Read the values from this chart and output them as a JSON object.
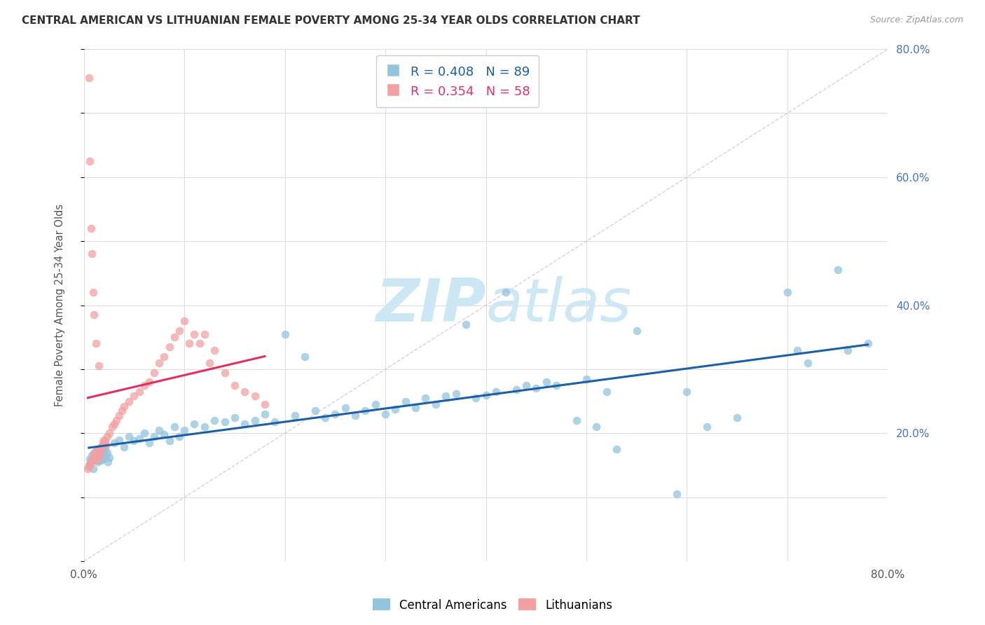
{
  "title": "CENTRAL AMERICAN VS LITHUANIAN FEMALE POVERTY AMONG 25-34 YEAR OLDS CORRELATION CHART",
  "source": "Source: ZipAtlas.com",
  "ylabel": "Female Poverty Among 25-34 Year Olds",
  "xlim": [
    0.0,
    0.8
  ],
  "ylim": [
    0.0,
    0.8
  ],
  "blue_R": 0.408,
  "blue_N": 89,
  "pink_R": 0.354,
  "pink_N": 58,
  "blue_color": "#92c5de",
  "pink_color": "#f4a0a0",
  "blue_line_color": "#1a5fa8",
  "pink_line_color": "#e03060",
  "legend_blue_color": "#1a5fa8",
  "legend_pink_color": "#e03060",
  "watermark_color": "#cde8f5",
  "background_color": "#ffffff",
  "grid_color": "#dddddd",
  "right_ytick_labels": [
    "20.0%",
    "40.0%",
    "60.0%",
    "80.0%"
  ],
  "right_ytick_positions": [
    0.2,
    0.4,
    0.6,
    0.8
  ],
  "xtick_labels": [
    "0.0%",
    "",
    "",
    "",
    "",
    "",
    "",
    "",
    "80.0%"
  ],
  "xtick_positions": [
    0.0,
    0.1,
    0.2,
    0.3,
    0.4,
    0.5,
    0.6,
    0.7,
    0.8
  ],
  "blue_scatter_x": [
    0.005,
    0.006,
    0.007,
    0.008,
    0.009,
    0.01,
    0.011,
    0.012,
    0.013,
    0.014,
    0.015,
    0.016,
    0.017,
    0.018,
    0.019,
    0.02,
    0.021,
    0.022,
    0.023,
    0.024,
    0.025,
    0.03,
    0.035,
    0.04,
    0.045,
    0.05,
    0.055,
    0.06,
    0.065,
    0.07,
    0.075,
    0.08,
    0.085,
    0.09,
    0.095,
    0.1,
    0.11,
    0.12,
    0.13,
    0.14,
    0.15,
    0.16,
    0.17,
    0.18,
    0.19,
    0.2,
    0.21,
    0.22,
    0.23,
    0.24,
    0.25,
    0.26,
    0.27,
    0.28,
    0.29,
    0.3,
    0.31,
    0.32,
    0.33,
    0.34,
    0.35,
    0.36,
    0.37,
    0.38,
    0.39,
    0.4,
    0.41,
    0.42,
    0.43,
    0.44,
    0.45,
    0.46,
    0.47,
    0.49,
    0.5,
    0.51,
    0.52,
    0.53,
    0.55,
    0.59,
    0.6,
    0.62,
    0.65,
    0.7,
    0.71,
    0.72,
    0.75,
    0.76,
    0.78
  ],
  "blue_scatter_y": [
    0.15,
    0.16,
    0.155,
    0.165,
    0.145,
    0.17,
    0.158,
    0.162,
    0.168,
    0.155,
    0.172,
    0.165,
    0.158,
    0.175,
    0.16,
    0.18,
    0.175,
    0.165,
    0.17,
    0.155,
    0.162,
    0.185,
    0.19,
    0.178,
    0.195,
    0.188,
    0.192,
    0.2,
    0.185,
    0.195,
    0.205,
    0.198,
    0.188,
    0.21,
    0.195,
    0.205,
    0.215,
    0.21,
    0.22,
    0.218,
    0.225,
    0.215,
    0.22,
    0.23,
    0.218,
    0.355,
    0.228,
    0.32,
    0.235,
    0.225,
    0.23,
    0.24,
    0.228,
    0.235,
    0.245,
    0.23,
    0.238,
    0.25,
    0.24,
    0.255,
    0.245,
    0.258,
    0.262,
    0.37,
    0.255,
    0.26,
    0.265,
    0.42,
    0.268,
    0.275,
    0.27,
    0.28,
    0.275,
    0.22,
    0.285,
    0.21,
    0.265,
    0.175,
    0.36,
    0.105,
    0.265,
    0.21,
    0.225,
    0.42,
    0.33,
    0.31,
    0.455,
    0.33,
    0.34
  ],
  "pink_scatter_x": [
    0.004,
    0.005,
    0.006,
    0.007,
    0.008,
    0.009,
    0.01,
    0.011,
    0.012,
    0.013,
    0.014,
    0.015,
    0.016,
    0.017,
    0.018,
    0.019,
    0.02,
    0.021,
    0.022,
    0.023,
    0.025,
    0.028,
    0.03,
    0.032,
    0.035,
    0.038,
    0.04,
    0.045,
    0.05,
    0.055,
    0.06,
    0.065,
    0.07,
    0.075,
    0.08,
    0.085,
    0.09,
    0.095,
    0.1,
    0.105,
    0.11,
    0.115,
    0.12,
    0.125,
    0.13,
    0.14,
    0.15,
    0.16,
    0.17,
    0.18,
    0.005,
    0.006,
    0.007,
    0.008,
    0.009,
    0.01,
    0.012,
    0.015
  ],
  "pink_scatter_y": [
    0.145,
    0.148,
    0.152,
    0.155,
    0.158,
    0.162,
    0.165,
    0.168,
    0.172,
    0.158,
    0.175,
    0.17,
    0.165,
    0.178,
    0.18,
    0.185,
    0.19,
    0.188,
    0.182,
    0.195,
    0.2,
    0.21,
    0.215,
    0.22,
    0.228,
    0.235,
    0.242,
    0.25,
    0.258,
    0.265,
    0.275,
    0.28,
    0.295,
    0.31,
    0.32,
    0.335,
    0.35,
    0.36,
    0.375,
    0.34,
    0.355,
    0.34,
    0.355,
    0.31,
    0.33,
    0.295,
    0.275,
    0.265,
    0.258,
    0.245,
    0.755,
    0.625,
    0.52,
    0.48,
    0.42,
    0.385,
    0.34,
    0.305
  ]
}
